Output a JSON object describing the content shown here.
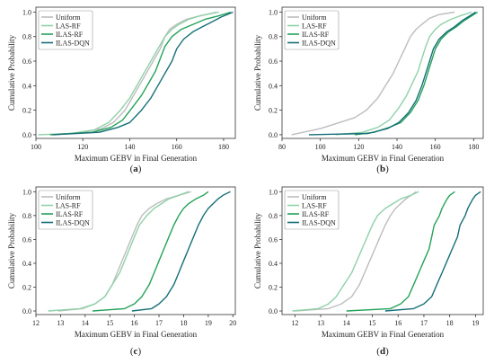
{
  "colors": {
    "Uniform": "#bdbdbd",
    "LAS-RF": "#8fd1a8",
    "ILAS-RF": "#25a25a",
    "ILAS-DQN": "#166f78"
  },
  "chart_data": [
    {
      "type": "line",
      "panel": "a",
      "caption": "a",
      "xlabel": "Maximum GEBV in Final Generation",
      "ylabel": "Cumulative Probability",
      "xlim": [
        100,
        185
      ],
      "ylim": [
        -0.03,
        1.04
      ],
      "xticks": [
        100,
        120,
        140,
        160,
        180
      ],
      "xtick_labels": [
        "100",
        "120",
        "140",
        "160",
        "180"
      ],
      "yticks": [
        0.0,
        0.2,
        0.4,
        0.6,
        0.8,
        1.0
      ],
      "ytick_labels": [
        "0.0",
        "0.2",
        "0.4",
        "0.6",
        "0.8",
        "1.0"
      ],
      "legend": "top-left",
      "series": [
        {
          "name": "Uniform",
          "x": [
            108,
            120,
            128,
            133,
            138,
            141,
            144,
            147,
            150,
            153,
            155,
            157,
            160,
            164,
            170,
            177
          ],
          "y": [
            0.0,
            0.02,
            0.05,
            0.1,
            0.2,
            0.3,
            0.4,
            0.5,
            0.6,
            0.7,
            0.8,
            0.86,
            0.9,
            0.94,
            0.97,
            1.0
          ]
        },
        {
          "name": "LAS-RF",
          "x": [
            101,
            115,
            125,
            131,
            136,
            140,
            143,
            146,
            149,
            152,
            155,
            158,
            161,
            165,
            170,
            178
          ],
          "y": [
            0.0,
            0.01,
            0.04,
            0.1,
            0.2,
            0.3,
            0.4,
            0.5,
            0.6,
            0.7,
            0.8,
            0.86,
            0.9,
            0.94,
            0.97,
            1.0
          ]
        },
        {
          "name": "ILAS-RF",
          "x": [
            106,
            124,
            132,
            137,
            141,
            145,
            148,
            151,
            153,
            155,
            158,
            162,
            167,
            172,
            178,
            183
          ],
          "y": [
            0.0,
            0.02,
            0.06,
            0.12,
            0.22,
            0.32,
            0.42,
            0.52,
            0.62,
            0.72,
            0.8,
            0.86,
            0.9,
            0.94,
            0.97,
            1.0
          ]
        },
        {
          "name": "ILAS-DQN",
          "x": [
            107,
            127,
            135,
            140,
            145,
            149,
            152,
            155,
            158,
            160,
            163,
            167,
            171,
            175,
            179,
            184
          ],
          "y": [
            0.0,
            0.02,
            0.06,
            0.1,
            0.2,
            0.3,
            0.4,
            0.5,
            0.6,
            0.7,
            0.78,
            0.84,
            0.88,
            0.92,
            0.96,
            1.0
          ]
        }
      ]
    },
    {
      "type": "line",
      "panel": "b",
      "caption": "b",
      "xlabel": "Maximum GEBV in Final Generation",
      "ylabel": "Cumulative Probability",
      "xlim": [
        80,
        185
      ],
      "ylim": [
        -0.03,
        1.04
      ],
      "xticks": [
        80,
        100,
        120,
        140,
        160,
        180
      ],
      "xtick_labels": [
        "80",
        "100",
        "120",
        "140",
        "160",
        "180"
      ],
      "yticks": [
        0.0,
        0.2,
        0.4,
        0.6,
        0.8,
        1.0
      ],
      "ytick_labels": [
        "0.0",
        "0.2",
        "0.4",
        "0.6",
        "0.8",
        "1.0"
      ],
      "legend": "top-left",
      "series": [
        {
          "name": "Uniform",
          "x": [
            85,
            100,
            110,
            118,
            124,
            130,
            134,
            138,
            141,
            144,
            147,
            150,
            153,
            157,
            162,
            170
          ],
          "y": [
            0.0,
            0.05,
            0.1,
            0.14,
            0.2,
            0.3,
            0.4,
            0.5,
            0.6,
            0.7,
            0.8,
            0.86,
            0.9,
            0.95,
            0.98,
            1.0
          ]
        },
        {
          "name": "LAS-RF",
          "x": [
            108,
            122,
            130,
            136,
            141,
            145,
            148,
            151,
            153,
            155,
            157,
            160,
            163,
            168,
            173,
            179
          ],
          "y": [
            0.0,
            0.02,
            0.06,
            0.12,
            0.22,
            0.32,
            0.42,
            0.52,
            0.62,
            0.72,
            0.8,
            0.86,
            0.9,
            0.94,
            0.97,
            1.0
          ]
        },
        {
          "name": "ILAS-RF",
          "x": [
            118,
            128,
            136,
            142,
            147,
            151,
            154,
            156,
            158,
            160,
            163,
            167,
            171,
            175,
            179,
            182
          ],
          "y": [
            0.0,
            0.02,
            0.06,
            0.1,
            0.18,
            0.28,
            0.4,
            0.5,
            0.6,
            0.7,
            0.78,
            0.84,
            0.88,
            0.93,
            0.97,
            1.0
          ]
        },
        {
          "name": "ILAS-DQN",
          "x": [
            94,
            125,
            135,
            141,
            146,
            150,
            153,
            155,
            157,
            159,
            162,
            166,
            170,
            174,
            178,
            181
          ],
          "y": [
            0.0,
            0.01,
            0.05,
            0.1,
            0.18,
            0.28,
            0.4,
            0.5,
            0.6,
            0.7,
            0.78,
            0.84,
            0.88,
            0.93,
            0.97,
            1.0
          ]
        }
      ]
    },
    {
      "type": "line",
      "panel": "c",
      "caption": "c",
      "xlabel": "Maximum GEBV in Final Generation",
      "ylabel": "Cumulative Probability",
      "xlim": [
        12,
        20.1
      ],
      "ylim": [
        -0.03,
        1.04
      ],
      "xticks": [
        12,
        13,
        14,
        15,
        16,
        17,
        18,
        19,
        20
      ],
      "xtick_labels": [
        "12",
        "13",
        "14",
        "15",
        "16",
        "17",
        "18",
        "19",
        "20"
      ],
      "yticks": [
        0.0,
        0.2,
        0.4,
        0.6,
        0.8,
        1.0
      ],
      "ytick_labels": [
        "0.0",
        "0.2",
        "0.4",
        "0.6",
        "0.8",
        "1.0"
      ],
      "legend": "top-left",
      "series": [
        {
          "name": "Uniform",
          "x": [
            12.9,
            13.9,
            14.4,
            14.8,
            15.1,
            15.3,
            15.5,
            15.7,
            15.9,
            16.1,
            16.3,
            16.6,
            16.9,
            17.3,
            17.8,
            18.3
          ],
          "y": [
            0.0,
            0.02,
            0.06,
            0.12,
            0.22,
            0.32,
            0.42,
            0.52,
            0.62,
            0.72,
            0.8,
            0.86,
            0.9,
            0.94,
            0.97,
            1.0
          ]
        },
        {
          "name": "LAS-RF",
          "x": [
            12.5,
            13.8,
            14.4,
            14.8,
            15.1,
            15.4,
            15.6,
            15.8,
            16.0,
            16.2,
            16.5,
            16.8,
            17.1,
            17.4,
            17.8,
            18.2
          ],
          "y": [
            0.0,
            0.02,
            0.06,
            0.12,
            0.22,
            0.32,
            0.42,
            0.52,
            0.62,
            0.72,
            0.8,
            0.86,
            0.9,
            0.94,
            0.97,
            1.0
          ]
        },
        {
          "name": "ILAS-RF",
          "x": [
            14.3,
            15.6,
            16.0,
            16.3,
            16.6,
            16.8,
            17.0,
            17.2,
            17.4,
            17.6,
            17.8,
            18.0,
            18.2,
            18.5,
            18.8,
            19.0
          ],
          "y": [
            0.0,
            0.02,
            0.06,
            0.12,
            0.22,
            0.32,
            0.42,
            0.52,
            0.62,
            0.72,
            0.8,
            0.86,
            0.9,
            0.94,
            0.97,
            1.0
          ]
        },
        {
          "name": "ILAS-DQN",
          "x": [
            15.9,
            16.7,
            17.0,
            17.3,
            17.6,
            17.8,
            18.0,
            18.2,
            18.4,
            18.6,
            18.8,
            19.0,
            19.2,
            19.4,
            19.6,
            19.9
          ],
          "y": [
            0.0,
            0.02,
            0.06,
            0.12,
            0.22,
            0.32,
            0.42,
            0.52,
            0.62,
            0.72,
            0.8,
            0.86,
            0.9,
            0.94,
            0.97,
            1.0
          ]
        }
      ]
    },
    {
      "type": "line",
      "panel": "d",
      "caption": "d",
      "xlabel": "Maximum GEBV in Final Generation",
      "ylabel": "Cumulative Probability",
      "xlim": [
        11.5,
        19.3
      ],
      "ylim": [
        -0.03,
        1.04
      ],
      "xticks": [
        12,
        13,
        14,
        15,
        16,
        17,
        18,
        19
      ],
      "xtick_labels": [
        "12",
        "13",
        "14",
        "15",
        "16",
        "17",
        "18",
        "19"
      ],
      "yticks": [
        0.0,
        0.2,
        0.4,
        0.6,
        0.8,
        1.0
      ],
      "ytick_labels": [
        "0.0",
        "0.2",
        "0.4",
        "0.6",
        "0.8",
        "1.0"
      ],
      "legend": "top-left",
      "series": [
        {
          "name": "Uniform",
          "x": [
            12.0,
            13.3,
            13.8,
            14.2,
            14.5,
            14.7,
            14.9,
            15.1,
            15.3,
            15.5,
            15.7,
            15.9,
            16.1,
            16.3,
            16.5,
            16.7
          ],
          "y": [
            0.0,
            0.02,
            0.06,
            0.12,
            0.22,
            0.32,
            0.42,
            0.52,
            0.62,
            0.72,
            0.8,
            0.86,
            0.9,
            0.94,
            0.97,
            1.0
          ]
        },
        {
          "name": "LAS-RF",
          "x": [
            11.9,
            12.9,
            13.3,
            13.6,
            13.9,
            14.2,
            14.4,
            14.6,
            14.8,
            15.0,
            15.2,
            15.5,
            15.8,
            16.1,
            16.5,
            16.8
          ],
          "y": [
            0.0,
            0.02,
            0.06,
            0.12,
            0.22,
            0.32,
            0.42,
            0.52,
            0.62,
            0.72,
            0.8,
            0.86,
            0.9,
            0.94,
            0.97,
            1.0
          ]
        },
        {
          "name": "ILAS-RF",
          "x": [
            14.0,
            15.7,
            16.1,
            16.4,
            16.6,
            16.8,
            17.0,
            17.2,
            17.3,
            17.4,
            17.6,
            17.7,
            17.8,
            17.9,
            18.0,
            18.2
          ],
          "y": [
            0.0,
            0.02,
            0.06,
            0.12,
            0.22,
            0.32,
            0.42,
            0.52,
            0.62,
            0.72,
            0.8,
            0.86,
            0.9,
            0.94,
            0.97,
            1.0
          ]
        },
        {
          "name": "ILAS-DQN",
          "x": [
            15.5,
            16.6,
            17.0,
            17.3,
            17.5,
            17.7,
            17.9,
            18.1,
            18.3,
            18.4,
            18.6,
            18.7,
            18.8,
            18.9,
            19.0,
            19.2
          ],
          "y": [
            0.0,
            0.02,
            0.06,
            0.12,
            0.22,
            0.32,
            0.42,
            0.52,
            0.62,
            0.72,
            0.8,
            0.86,
            0.9,
            0.94,
            0.97,
            1.0
          ]
        }
      ]
    }
  ]
}
